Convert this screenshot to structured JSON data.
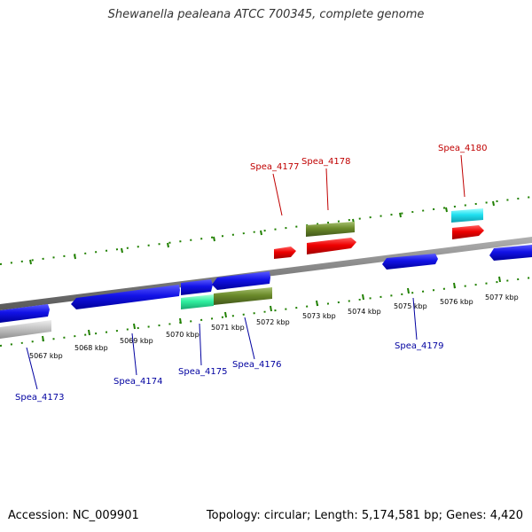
{
  "title": "Shewanella pealeana ATCC 700345, complete genome",
  "footer": {
    "accession": "Accession: NC_009901",
    "summary": "Topology: circular; Length: 5,174,581 bp; Genes: 4,420"
  },
  "colors": {
    "forward_strand_gene": "#1010e0",
    "reverse_strand_gene": "#e00000",
    "label_forward": "#0000a0",
    "label_reverse": "#c00000",
    "tick": "#208000",
    "backbone": "#888888",
    "olive_feature": "#6b8a2a",
    "cyan_feature": "#20e0f0",
    "teal_feature": "#30f0a0",
    "grey_feature": "#c0c0c0"
  },
  "scale_labels": [
    "5067 kbp",
    "5068 kbp",
    "5069 kbp",
    "5070 kbp",
    "5071 kbp",
    "5072 kbp",
    "5073 kbp",
    "5074 kbp",
    "5075 kbp",
    "5076 kbp",
    "5077 kbp"
  ],
  "gene_labels_top": [
    "Spea_4177",
    "Spea_4178",
    "Spea_4180"
  ],
  "gene_labels_bottom": [
    "Spea_4173",
    "Spea_4174",
    "Spea_4175",
    "Spea_4176",
    "Spea_4179"
  ]
}
